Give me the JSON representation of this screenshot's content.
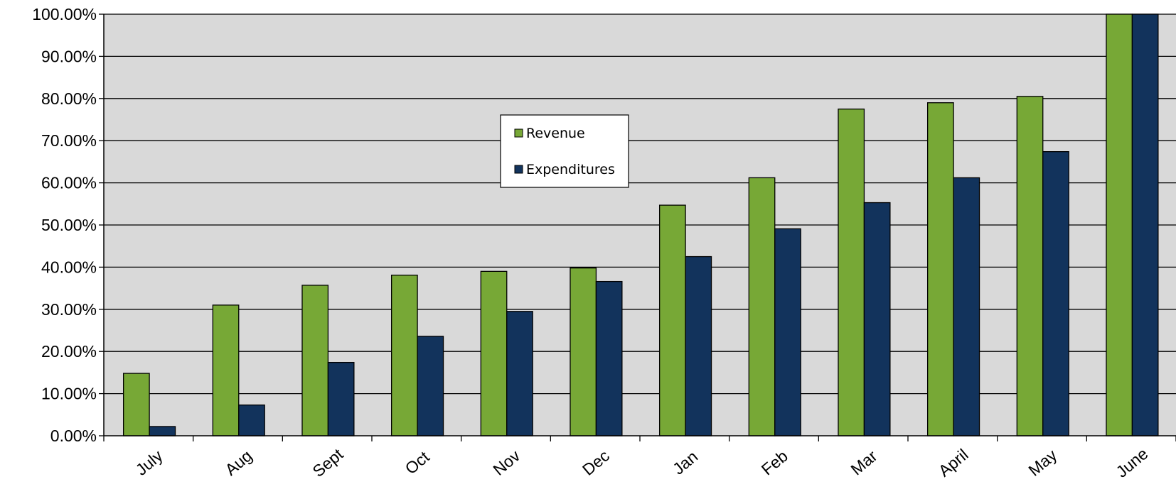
{
  "chart_data": {
    "type": "bar",
    "title": "",
    "xlabel": "",
    "ylabel": "",
    "categories": [
      "July",
      "Aug",
      "Sept",
      "Oct",
      "Nov",
      "Dec",
      "Jan",
      "Feb",
      "Mar",
      "April",
      "May",
      "June"
    ],
    "series": [
      {
        "name": "Revenue",
        "color": "#77a836",
        "values": [
          14.8,
          31.0,
          35.7,
          38.1,
          39.0,
          39.8,
          54.7,
          61.2,
          77.5,
          79.0,
          80.5,
          100.0
        ]
      },
      {
        "name": "Expenditures",
        "color": "#12335c",
        "values": [
          2.2,
          7.3,
          17.4,
          23.6,
          29.5,
          36.6,
          42.5,
          49.1,
          55.3,
          61.2,
          67.4,
          100.0
        ]
      }
    ],
    "ylim": [
      0,
      100
    ],
    "yticks": [
      0,
      10,
      20,
      30,
      40,
      50,
      60,
      70,
      80,
      90,
      100
    ],
    "ytick_labels": [
      "0.00%",
      "10.00%",
      "20.00%",
      "30.00%",
      "40.00%",
      "50.00%",
      "60.00%",
      "70.00%",
      "80.00%",
      "90.00%",
      "100.00%"
    ],
    "grid": true,
    "plot_background": "#d9d9d9",
    "legend_position": "upper-center"
  }
}
